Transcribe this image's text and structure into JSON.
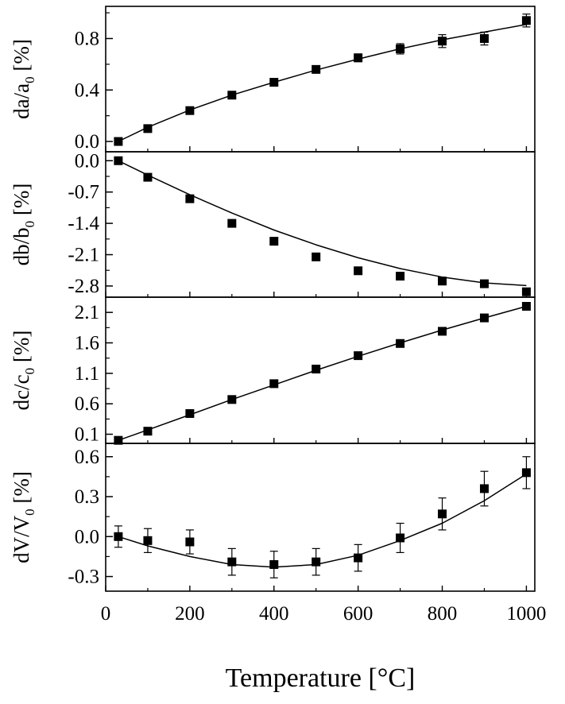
{
  "chart_data": {
    "type": "scatter",
    "shared_x": {
      "xlabel": "Temperature [°C]",
      "xlim": [
        0,
        1020
      ],
      "xticks": [
        0,
        200,
        400,
        600,
        800,
        1000
      ],
      "xtick_labels": [
        "0",
        "200",
        "400",
        "600",
        "800",
        "1000"
      ]
    },
    "panels": [
      {
        "id": "a",
        "ylabel_main": "da/a",
        "ylabel_sub": "0",
        "ylabel_unit": " [%]",
        "ylim": [
          -0.08,
          1.05
        ],
        "yticks": [
          0.0,
          0.4,
          0.8
        ],
        "ytick_labels": [
          "0.0",
          "0.4",
          "0.8"
        ],
        "x": [
          30,
          100,
          200,
          300,
          400,
          500,
          600,
          700,
          800,
          900,
          1000
        ],
        "y": [
          0.0,
          0.1,
          0.24,
          0.36,
          0.46,
          0.56,
          0.65,
          0.72,
          0.78,
          0.8,
          0.94
        ],
        "err": [
          0.02,
          0.02,
          0.02,
          0.02,
          0.02,
          0.02,
          0.03,
          0.04,
          0.05,
          0.05,
          0.05
        ],
        "fit": [
          [
            30,
            0.0
          ],
          [
            100,
            0.11
          ],
          [
            200,
            0.245
          ],
          [
            300,
            0.36
          ],
          [
            400,
            0.46
          ],
          [
            500,
            0.555
          ],
          [
            600,
            0.64
          ],
          [
            700,
            0.72
          ],
          [
            800,
            0.79
          ],
          [
            900,
            0.85
          ],
          [
            1000,
            0.91
          ]
        ]
      },
      {
        "id": "b",
        "ylabel_main": "db/b",
        "ylabel_sub": "0",
        "ylabel_unit": " [%]",
        "ylim": [
          -3.05,
          0.2
        ],
        "yticks": [
          0.0,
          -0.7,
          -1.4,
          -2.1,
          -2.8
        ],
        "ytick_labels": [
          "0.0",
          "-0.7",
          "-1.4",
          "-2.1",
          "-2.8"
        ],
        "x": [
          30,
          100,
          200,
          300,
          400,
          500,
          600,
          700,
          800,
          900,
          1000
        ],
        "y": [
          0.0,
          -0.37,
          -0.85,
          -1.4,
          -1.8,
          -2.15,
          -2.46,
          -2.58,
          -2.69,
          -2.75,
          -2.93
        ],
        "err": [
          0,
          0,
          0,
          0,
          0,
          0,
          0,
          0,
          0,
          0,
          0
        ],
        "fit": [
          [
            30,
            0.0
          ],
          [
            100,
            -0.32
          ],
          [
            200,
            -0.76
          ],
          [
            300,
            -1.17
          ],
          [
            400,
            -1.55
          ],
          [
            500,
            -1.88
          ],
          [
            600,
            -2.17
          ],
          [
            700,
            -2.41
          ],
          [
            800,
            -2.6
          ],
          [
            900,
            -2.73
          ],
          [
            1000,
            -2.79
          ]
        ]
      },
      {
        "id": "c",
        "ylabel_main": "dc/c",
        "ylabel_sub": "0",
        "ylabel_unit": " [%]",
        "ylim": [
          -0.05,
          2.35
        ],
        "yticks": [
          0.1,
          0.6,
          1.1,
          1.6,
          2.1
        ],
        "ytick_labels": [
          "0.1",
          "0.6",
          "1.1",
          "1.6",
          "2.1"
        ],
        "x": [
          30,
          100,
          200,
          300,
          400,
          500,
          600,
          700,
          800,
          900,
          1000
        ],
        "y": [
          0.0,
          0.15,
          0.44,
          0.67,
          0.93,
          1.17,
          1.39,
          1.59,
          1.79,
          2.01,
          2.2
        ],
        "err": [
          0,
          0,
          0,
          0,
          0,
          0,
          0,
          0,
          0,
          0,
          0
        ],
        "fit": [
          [
            30,
            0.0
          ],
          [
            100,
            0.17
          ],
          [
            200,
            0.42
          ],
          [
            300,
            0.67
          ],
          [
            400,
            0.91
          ],
          [
            500,
            1.15
          ],
          [
            600,
            1.38
          ],
          [
            700,
            1.6
          ],
          [
            800,
            1.81
          ],
          [
            900,
            2.01
          ],
          [
            1000,
            2.2
          ]
        ]
      },
      {
        "id": "V",
        "ylabel_main": "dV/V",
        "ylabel_sub": "0",
        "ylabel_unit": " [%]",
        "ylim": [
          -0.41,
          0.7
        ],
        "yticks": [
          -0.3,
          0.0,
          0.3,
          0.6
        ],
        "ytick_labels": [
          "-0.3",
          "0.0",
          "0.3",
          "0.6"
        ],
        "x": [
          30,
          100,
          200,
          300,
          400,
          500,
          600,
          700,
          800,
          900,
          1000
        ],
        "y": [
          0.0,
          -0.03,
          -0.04,
          -0.19,
          -0.21,
          -0.19,
          -0.16,
          -0.01,
          0.17,
          0.36,
          0.48
        ],
        "err": [
          0.08,
          0.09,
          0.09,
          0.1,
          0.1,
          0.1,
          0.1,
          0.11,
          0.12,
          0.13,
          0.12
        ],
        "fit": [
          [
            30,
            0.0
          ],
          [
            100,
            -0.07
          ],
          [
            200,
            -0.15
          ],
          [
            300,
            -0.21
          ],
          [
            400,
            -0.23
          ],
          [
            500,
            -0.21
          ],
          [
            600,
            -0.14
          ],
          [
            700,
            -0.03
          ],
          [
            800,
            0.1
          ],
          [
            900,
            0.27
          ],
          [
            1000,
            0.47
          ]
        ]
      }
    ]
  }
}
